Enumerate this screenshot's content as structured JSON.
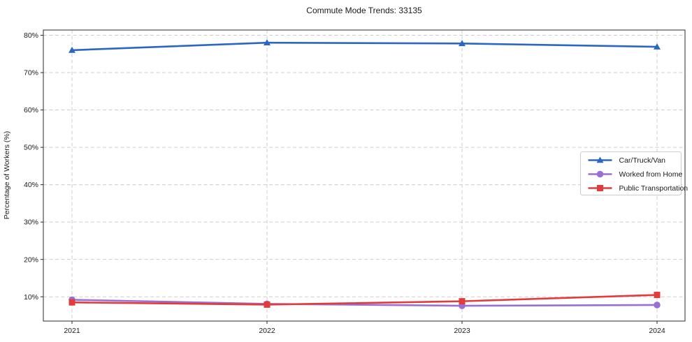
{
  "chart_data": {
    "type": "line",
    "title": "Commute Mode Trends: 33135",
    "xlabel": "",
    "ylabel": "Percentage of Workers (%)",
    "categories": [
      "2021",
      "2022",
      "2023",
      "2024"
    ],
    "series": [
      {
        "name": "Car/Truck/Van",
        "marker": "triangle",
        "color": "#2b67c2",
        "values": [
          76.0,
          78.0,
          77.8,
          76.9
        ]
      },
      {
        "name": "Worked from Home",
        "marker": "circle",
        "color": "#9a6fd4",
        "values": [
          9.2,
          8.1,
          7.6,
          7.8
        ]
      },
      {
        "name": "Public Transportation",
        "marker": "square",
        "color": "#e23b3b",
        "values": [
          8.5,
          7.9,
          8.8,
          10.5
        ]
      }
    ],
    "yticks": [
      10,
      20,
      30,
      40,
      50,
      60,
      70,
      80
    ],
    "ytick_suffix": "%",
    "ylim": [
      3.5,
      81.4
    ],
    "grid": true,
    "legend_position": "right-center",
    "colors": {
      "grid": "#cdcdcd",
      "spine": "#2a2a2a",
      "tick_text": "#1a1a1a",
      "legend_border": "#cccccc",
      "background": "#ffffff"
    }
  }
}
